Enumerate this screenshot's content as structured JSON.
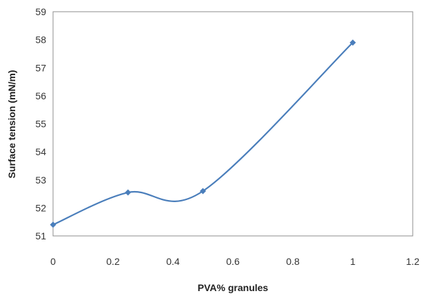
{
  "chart_data": {
    "type": "line",
    "title": "",
    "xlabel": "PVA% granules",
    "ylabel": "Surface tension (mN/m)",
    "xlim": [
      0,
      1.2
    ],
    "ylim": [
      51,
      59
    ],
    "xticks": [
      "0",
      "0.2",
      "0.4",
      "0.6",
      "0.8",
      "1",
      "1.2"
    ],
    "yticks": [
      "51",
      "52",
      "53",
      "54",
      "55",
      "56",
      "57",
      "58",
      "59"
    ],
    "grid": false,
    "legend": "none",
    "smooth": true,
    "series": [
      {
        "x": [
          0,
          0.25,
          0.5,
          1
        ],
        "y": [
          51.4,
          52.55,
          52.6,
          57.9
        ],
        "color": "#4a7ebb"
      }
    ]
  }
}
